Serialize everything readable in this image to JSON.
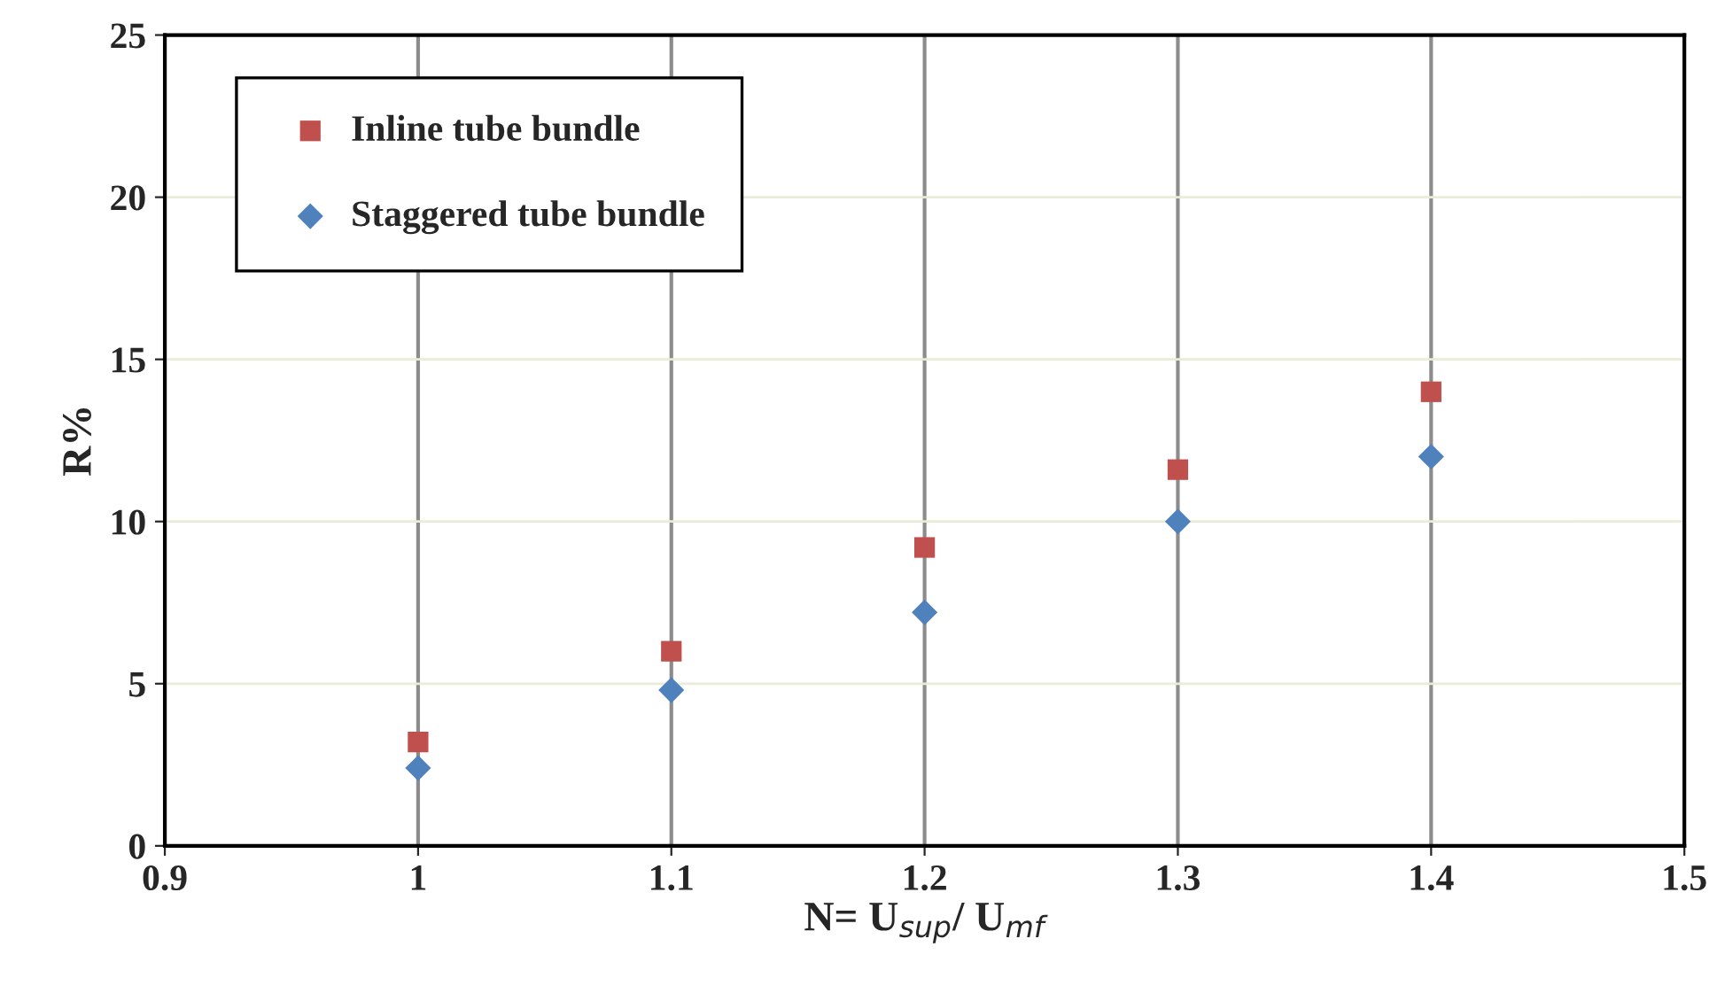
{
  "chart_data": {
    "type": "scatter",
    "xlabel": "N= U$_{sup}$/ U$_{mf}$",
    "ylabel": "R%",
    "xlim": [
      0.9,
      1.5
    ],
    "xticks": [
      0.9,
      1,
      1.1,
      1.2,
      1.3,
      1.4,
      1.5
    ],
    "ylim": [
      0,
      25
    ],
    "yticks": [
      0,
      5,
      10,
      15,
      20,
      25
    ],
    "grid": true,
    "legend": "top left",
    "series": [
      {
        "name": "Inline tube bundle",
        "color": "#c0504d",
        "marker": "square",
        "x": [
          1,
          1.1,
          1.2,
          1.3,
          1.4
        ],
        "values": [
          3.2,
          6.0,
          9.2,
          11.6,
          14.0
        ]
      },
      {
        "name": "Staggered tube bundle",
        "color": "#4f81bd",
        "marker": "diamond",
        "x": [
          1,
          1.1,
          1.2,
          1.3,
          1.4
        ],
        "values": [
          2.4,
          4.8,
          7.2,
          10.0,
          12.0
        ]
      }
    ]
  }
}
